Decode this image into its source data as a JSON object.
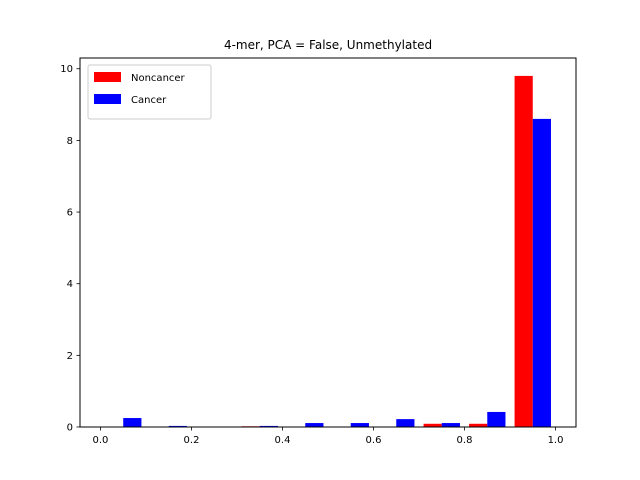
{
  "chart_data": {
    "type": "bar",
    "title": "4-mer, PCA = False,  Unmethylated",
    "xlabel": "",
    "ylabel": "",
    "xlim": [
      -0.045,
      1.045
    ],
    "ylim": [
      0,
      10.3
    ],
    "xticks": [
      0.0,
      0.2,
      0.4,
      0.6,
      0.8,
      1.0
    ],
    "xtick_labels": [
      "0.0",
      "0.2",
      "0.4",
      "0.6",
      "0.8",
      "1.0"
    ],
    "yticks": [
      0,
      2,
      4,
      6,
      8,
      10
    ],
    "ytick_labels": [
      "0",
      "2",
      "4",
      "6",
      "8",
      "10"
    ],
    "bin_edges": [
      0.0,
      0.1,
      0.2,
      0.3,
      0.4,
      0.5,
      0.6,
      0.7,
      0.8,
      0.9,
      1.0
    ],
    "grid": false,
    "legend": {
      "placement": "top-left"
    },
    "series": [
      {
        "name": "Noncancer",
        "color": "#ff0000",
        "values": [
          0.0,
          0.0,
          0.0,
          0.02,
          0.0,
          0.0,
          0.0,
          0.09,
          0.09,
          9.8
        ]
      },
      {
        "name": "Cancer",
        "color": "#0000ff",
        "values": [
          0.25,
          0.03,
          0.0,
          0.03,
          0.11,
          0.11,
          0.22,
          0.11,
          0.42,
          8.6
        ]
      }
    ]
  }
}
